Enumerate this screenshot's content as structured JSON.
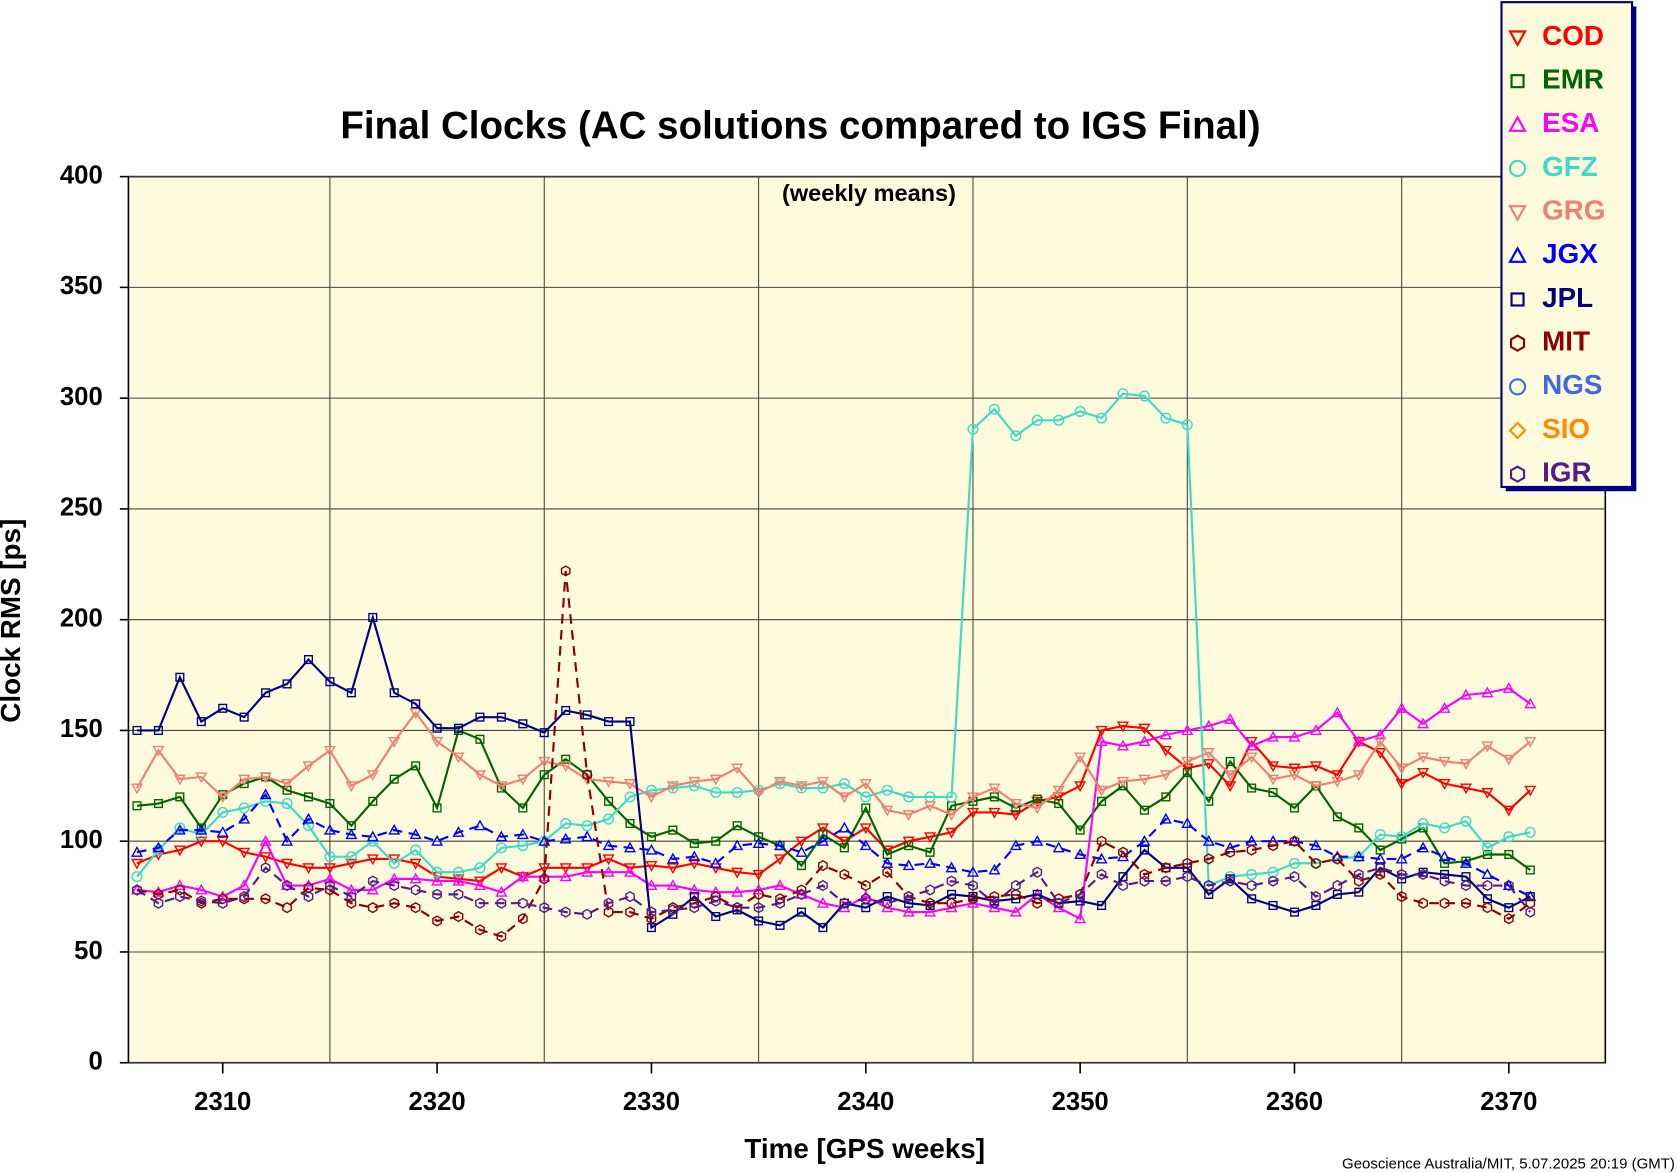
{
  "chart_data": {
    "type": "line",
    "title": "Final Clocks (AC solutions compared to IGS Final)",
    "subtitle": "(weekly means)",
    "xlabel": "Time [GPS weeks]",
    "ylabel": "Clock RMS [ps]",
    "footer": "Geoscience Australia/MIT, 5.07.2025 20:19 (GMT)",
    "xlim": [
      2305.6,
      2374.5
    ],
    "ylim": [
      0,
      400
    ],
    "xticks": [
      2310,
      2320,
      2330,
      2340,
      2350,
      2360,
      2370
    ],
    "xgrid": [
      2315,
      2325,
      2335,
      2345,
      2355,
      2365
    ],
    "yticks": [
      0,
      50,
      100,
      150,
      200,
      250,
      300,
      350,
      400
    ],
    "grid": true,
    "legend": "upper right",
    "x": [
      2306,
      2307,
      2308,
      2309,
      2310,
      2311,
      2312,
      2313,
      2314,
      2315,
      2316,
      2317,
      2318,
      2319,
      2320,
      2321,
      2322,
      2323,
      2324,
      2325,
      2326,
      2327,
      2328,
      2329,
      2330,
      2331,
      2332,
      2333,
      2334,
      2335,
      2336,
      2337,
      2338,
      2339,
      2340,
      2341,
      2342,
      2343,
      2344,
      2345,
      2346,
      2347,
      2348,
      2349,
      2350,
      2351,
      2352,
      2353,
      2354,
      2355,
      2356,
      2357,
      2358,
      2359,
      2360,
      2361,
      2362,
      2363,
      2364,
      2365,
      2366,
      2367,
      2368,
      2369,
      2370,
      2371
    ],
    "series": [
      {
        "name": "COD",
        "color": "#ff0000",
        "marker": "tri-down",
        "dashed": false,
        "values": [
          90,
          94,
          96,
          100,
          100,
          95,
          93,
          90,
          88,
          88,
          90,
          92,
          92,
          90,
          84,
          83,
          82,
          88,
          84,
          88,
          88,
          88,
          92,
          88,
          89,
          88,
          90,
          88,
          86,
          85,
          92,
          100,
          106,
          100,
          106,
          96,
          100,
          102,
          104,
          113,
          113,
          112,
          118,
          120,
          125,
          150,
          152,
          151,
          141,
          133,
          135,
          125,
          145,
          134,
          133,
          134,
          130,
          145,
          140,
          126,
          131,
          126,
          124,
          122,
          114,
          123
        ]
      },
      {
        "name": "EMR",
        "color": "#006400",
        "marker": "square",
        "dashed": false,
        "values": [
          116,
          117,
          120,
          106,
          121,
          126,
          129,
          123,
          120,
          117,
          107,
          118,
          128,
          134,
          115,
          150,
          146,
          124,
          115,
          130,
          137,
          130,
          118,
          108,
          102,
          105,
          99,
          100,
          107,
          102,
          98,
          89,
          103,
          97,
          115,
          94,
          98,
          95,
          116,
          118,
          120,
          115,
          119,
          117,
          105,
          118,
          125,
          114,
          120,
          131,
          118,
          136,
          124,
          122,
          115,
          125,
          111,
          106,
          96,
          101,
          106,
          90,
          91,
          94,
          94,
          87
        ]
      },
      {
        "name": "ESA",
        "color": "#ff00ff",
        "marker": "tri-up",
        "dashed": false,
        "values": [
          78,
          77,
          80,
          78,
          75,
          80,
          100,
          80,
          80,
          83,
          78,
          78,
          83,
          83,
          82,
          82,
          80,
          77,
          84,
          84,
          84,
          86,
          86,
          86,
          80,
          80,
          78,
          77,
          77,
          78,
          80,
          76,
          72,
          70,
          75,
          70,
          68,
          68,
          70,
          72,
          70,
          68,
          76,
          70,
          65,
          145,
          143,
          145,
          148,
          150,
          152,
          155,
          143,
          147,
          147,
          150,
          158,
          145,
          148,
          160,
          153,
          160,
          166,
          167,
          169,
          162
        ]
      },
      {
        "name": "GFZ",
        "color": "#40d8c8",
        "marker": "circle",
        "dashed": false,
        "values": [
          84,
          96,
          106,
          103,
          113,
          115,
          118,
          117,
          107,
          93,
          93,
          100,
          90,
          96,
          86,
          86,
          88,
          97,
          98,
          100,
          108,
          107,
          110,
          120,
          123,
          124,
          125,
          122,
          122,
          123,
          126,
          124,
          124,
          126,
          120,
          123,
          120,
          120,
          120,
          286,
          295,
          283,
          290,
          290,
          294,
          291,
          302,
          301,
          291,
          288,
          80,
          84,
          85,
          86,
          90,
          90,
          92,
          93,
          103,
          102,
          108,
          106,
          109,
          97,
          102,
          104
        ]
      },
      {
        "name": "GRG",
        "color": "#f08070",
        "marker": "tri-down",
        "dashed": false,
        "values": [
          124,
          141,
          128,
          129,
          120,
          128,
          129,
          126,
          134,
          141,
          125,
          130,
          145,
          158,
          145,
          138,
          130,
          125,
          128,
          136,
          134,
          128,
          127,
          126,
          120,
          125,
          127,
          128,
          133,
          122,
          127,
          125,
          127,
          120,
          126,
          114,
          112,
          116,
          112,
          120,
          124,
          117,
          115,
          123,
          138,
          123,
          127,
          128,
          130,
          136,
          140,
          130,
          138,
          128,
          130,
          125,
          127,
          130,
          145,
          133,
          138,
          136,
          135,
          143,
          137,
          145
        ]
      },
      {
        "name": "JGX",
        "color": "#0000ff",
        "marker": "tri-up",
        "dashed": true,
        "values": [
          95,
          97,
          105,
          105,
          104,
          110,
          121,
          100,
          110,
          105,
          103,
          102,
          105,
          103,
          100,
          104,
          107,
          102,
          103,
          100,
          101,
          102,
          98,
          97,
          96,
          92,
          93,
          90,
          98,
          99,
          98,
          95,
          100,
          106,
          98,
          90,
          89,
          90,
          88,
          86,
          87,
          98,
          100,
          97,
          94,
          92,
          93,
          100,
          110,
          108,
          100,
          97,
          100,
          100,
          100,
          98,
          93,
          93,
          92,
          92,
          97,
          93,
          90,
          85,
          80,
          75
        ]
      },
      {
        "name": "JPL",
        "color": "#000080",
        "marker": "square",
        "dashed": false,
        "values": [
          150,
          150,
          174,
          154,
          160,
          156,
          167,
          171,
          182,
          172,
          167,
          201,
          167,
          162,
          151,
          151,
          156,
          156,
          153,
          149,
          159,
          157,
          154,
          154,
          61,
          67,
          75,
          66,
          69,
          64,
          62,
          68,
          61,
          72,
          70,
          75,
          72,
          71,
          76,
          75,
          73,
          74,
          76,
          72,
          73,
          71,
          84,
          96,
          88,
          88,
          76,
          83,
          74,
          71,
          68,
          71,
          76,
          77,
          88,
          83,
          86,
          85,
          84,
          74,
          70,
          75
        ]
      },
      {
        "name": "MIT",
        "color": "#8b0000",
        "marker": "hexagon",
        "dashed": true,
        "values": [
          78,
          76,
          78,
          72,
          74,
          74,
          74,
          70,
          79,
          78,
          72,
          70,
          72,
          70,
          64,
          66,
          60,
          57,
          65,
          83,
          222,
          130,
          68,
          68,
          65,
          70,
          72,
          75,
          70,
          76,
          74,
          78,
          89,
          85,
          80,
          86,
          75,
          72,
          72,
          74,
          75,
          76,
          72,
          74,
          76,
          100,
          95,
          85,
          88,
          90,
          92,
          95,
          96,
          98,
          100,
          90,
          92,
          82,
          85,
          75,
          72,
          72,
          72,
          70,
          65,
          72
        ]
      },
      {
        "name": "NGS",
        "color": "#4169e1",
        "marker": "circle",
        "dashed": false,
        "values": [
          null,
          null,
          null,
          null,
          null,
          null,
          null,
          null,
          null,
          null,
          null,
          null,
          null,
          null,
          null,
          null,
          null,
          null,
          null,
          null,
          null,
          null,
          null,
          null,
          null,
          null,
          null,
          null,
          null,
          null,
          null,
          null,
          null,
          null,
          null,
          null,
          null,
          null,
          null,
          null,
          null,
          null,
          null,
          null,
          null,
          null,
          null,
          null,
          null,
          null,
          null,
          null,
          null,
          null,
          null,
          null,
          null,
          null,
          null,
          null,
          null,
          null,
          null,
          null,
          null,
          null
        ]
      },
      {
        "name": "SIO",
        "color": "#ff8c00",
        "marker": "diamond",
        "dashed": false,
        "values": [
          null,
          null,
          null,
          null,
          null,
          null,
          null,
          null,
          null,
          null,
          null,
          null,
          null,
          null,
          null,
          null,
          null,
          null,
          null,
          null,
          null,
          null,
          null,
          null,
          null,
          null,
          null,
          null,
          null,
          null,
          null,
          null,
          null,
          null,
          null,
          null,
          null,
          null,
          null,
          null,
          null,
          null,
          null,
          null,
          null,
          null,
          null,
          null,
          null,
          null,
          null,
          null,
          null,
          null,
          null,
          null,
          null,
          null,
          null,
          null,
          null,
          null,
          null,
          null,
          null,
          null
        ]
      },
      {
        "name": "IGR",
        "color": "#551a8b",
        "marker": "hexagon",
        "dashed": true,
        "values": [
          78,
          72,
          75,
          73,
          72,
          75,
          88,
          80,
          75,
          80,
          75,
          82,
          80,
          78,
          76,
          76,
          72,
          72,
          72,
          70,
          68,
          67,
          72,
          75,
          68,
          69,
          70,
          73,
          70,
          70,
          72,
          76,
          80,
          72,
          74,
          72,
          75,
          78,
          82,
          80,
          72,
          80,
          86,
          72,
          76,
          85,
          80,
          82,
          82,
          84,
          80,
          82,
          80,
          82,
          84,
          75,
          80,
          85,
          88,
          85,
          85,
          82,
          80,
          80,
          80,
          68
        ]
      }
    ]
  }
}
